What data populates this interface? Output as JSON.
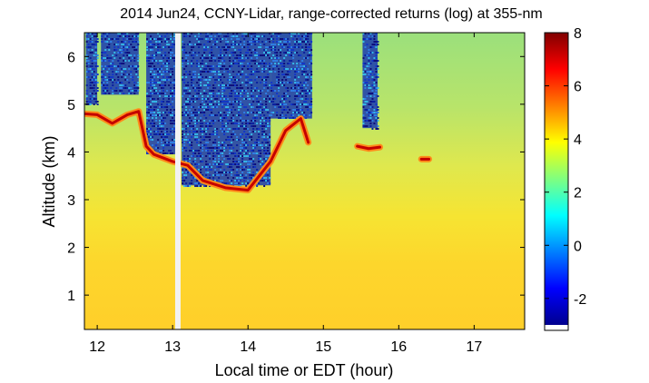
{
  "chart_data": {
    "type": "heatmap",
    "title": "2014 Jun24, CCNY-Lidar, range-corrected returns (log) at 355-nm",
    "xlabel": "Local time or EDT (hour)",
    "ylabel": "Altitude (km)",
    "xlim": [
      11.83,
      17.67
    ],
    "ylim": [
      0.28,
      6.5
    ],
    "xticks": [
      12,
      13,
      14,
      15,
      16,
      17
    ],
    "yticks": [
      1,
      2,
      3,
      4,
      5,
      6
    ],
    "colorbar": {
      "label": "",
      "lim": [
        -3.2,
        8
      ],
      "ticks": [
        -2,
        0,
        2,
        4,
        6,
        8
      ],
      "colormap": "jet"
    },
    "gap_time": 13.07,
    "layers": [
      {
        "x": [
          11.83,
          12.0,
          12.2,
          12.4,
          12.55,
          12.65,
          12.75,
          13.0,
          13.2,
          13.4,
          13.7,
          14.0,
          14.3,
          14.5,
          14.7,
          14.8
        ],
        "y": [
          4.8,
          4.78,
          4.6,
          4.78,
          4.85,
          4.12,
          3.95,
          3.8,
          3.72,
          3.4,
          3.25,
          3.2,
          3.8,
          4.45,
          4.7,
          4.2
        ]
      },
      {
        "x": [
          15.45,
          15.6,
          15.75
        ],
        "y": [
          4.12,
          4.07,
          4.1
        ]
      },
      {
        "x": [
          16.3,
          16.4
        ],
        "y": [
          3.85,
          3.85
        ]
      }
    ],
    "noise_regions": [
      {
        "x0": 11.85,
        "x1": 12.0,
        "y0": 5.0,
        "y1": 6.5
      },
      {
        "x0": 12.05,
        "x1": 12.55,
        "y0": 5.2,
        "y1": 6.5
      },
      {
        "x0": 12.65,
        "x1": 13.05,
        "y0": 3.95,
        "y1": 6.5
      },
      {
        "x0": 13.12,
        "x1": 14.3,
        "y0": 3.3,
        "y1": 6.5
      },
      {
        "x0": 14.3,
        "x1": 14.85,
        "y0": 4.7,
        "y1": 6.5
      },
      {
        "x0": 15.52,
        "x1": 15.72,
        "y0": 4.5,
        "y1": 6.5
      }
    ]
  }
}
